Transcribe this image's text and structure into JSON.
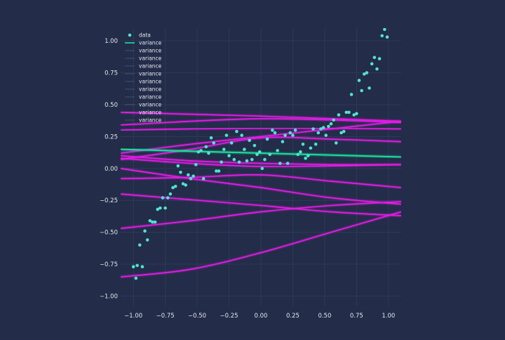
{
  "chart_data": {
    "type": "scatter",
    "title": "",
    "xlabel": "",
    "ylabel": "",
    "xlim": [
      -1.1,
      1.1
    ],
    "ylim": [
      -1.08,
      1.1
    ],
    "grid": true,
    "legend_position": "top-left",
    "x_ticks": [
      -1.0,
      -0.75,
      -0.5,
      -0.25,
      0.0,
      0.25,
      0.5,
      0.75,
      1.0
    ],
    "x_tick_labels": [
      "−1.00",
      "−0.75",
      "−0.50",
      "−0.25",
      "0.00",
      "0.25",
      "0.50",
      "0.75",
      "1.00"
    ],
    "y_ticks": [
      -1.0,
      -0.75,
      -0.5,
      -0.25,
      0.0,
      0.25,
      0.5,
      0.75,
      1.0
    ],
    "y_tick_labels": [
      "−1.00",
      "−0.75",
      "−0.50",
      "−0.25",
      "0.00",
      "0.25",
      "0.50",
      "0.75",
      "1.00"
    ],
    "colors": {
      "background": "#232c48",
      "grid": "#2e3a5a",
      "data": "#4fe3d1",
      "mean_line": "#19e59a",
      "sample_lines": "#e21ee6",
      "text": "#e6e8ef"
    },
    "legend": [
      {
        "label": "data",
        "kind": "marker"
      },
      {
        "label": "variance",
        "kind": "line"
      },
      {
        "label": "variance",
        "kind": "line"
      },
      {
        "label": "variance",
        "kind": "line"
      },
      {
        "label": "variance",
        "kind": "line"
      },
      {
        "label": "variance",
        "kind": "line"
      },
      {
        "label": "variance",
        "kind": "line"
      },
      {
        "label": "variance",
        "kind": "line"
      },
      {
        "label": "variance",
        "kind": "line"
      },
      {
        "label": "variance",
        "kind": "line"
      },
      {
        "label": "variance",
        "kind": "line"
      },
      {
        "label": "variance",
        "kind": "line"
      }
    ],
    "scatter": {
      "name": "data",
      "x": [
        -1.0,
        -0.98,
        -0.97,
        -0.95,
        -0.93,
        -0.91,
        -0.89,
        -0.87,
        -0.85,
        -0.83,
        -0.81,
        -0.79,
        -0.77,
        -0.75,
        -0.73,
        -0.71,
        -0.69,
        -0.67,
        -0.65,
        -0.63,
        -0.61,
        -0.59,
        -0.57,
        -0.55,
        -0.53,
        -0.51,
        -0.49,
        -0.47,
        -0.45,
        -0.43,
        -0.41,
        -0.39,
        -0.37,
        -0.35,
        -0.33,
        -0.31,
        -0.29,
        -0.27,
        -0.25,
        -0.23,
        -0.21,
        -0.19,
        -0.17,
        -0.15,
        -0.13,
        -0.11,
        -0.09,
        -0.07,
        -0.05,
        -0.03,
        -0.01,
        0.01,
        0.03,
        0.05,
        0.07,
        0.09,
        0.11,
        0.13,
        0.15,
        0.17,
        0.19,
        0.21,
        0.23,
        0.25,
        0.27,
        0.29,
        0.31,
        0.33,
        0.35,
        0.37,
        0.39,
        0.41,
        0.43,
        0.45,
        0.47,
        0.49,
        0.51,
        0.53,
        0.55,
        0.57,
        0.59,
        0.61,
        0.63,
        0.65,
        0.67,
        0.69,
        0.71,
        0.73,
        0.75,
        0.77,
        0.79,
        0.81,
        0.83,
        0.85,
        0.87,
        0.89,
        0.91,
        0.93,
        0.95,
        0.97,
        0.99
      ],
      "y": [
        -0.77,
        -0.86,
        -0.76,
        -0.6,
        -0.77,
        -0.49,
        -0.56,
        -0.41,
        -0.42,
        -0.42,
        -0.32,
        -0.31,
        -0.23,
        -0.31,
        -0.23,
        -0.2,
        -0.15,
        -0.14,
        0.02,
        -0.03,
        -0.12,
        -0.13,
        -0.05,
        -0.08,
        -0.06,
        0.03,
        0.13,
        0.14,
        -0.08,
        0.17,
        0.12,
        0.24,
        0.2,
        -0.02,
        -0.02,
        0.05,
        0.15,
        0.26,
        0.1,
        0.2,
        0.07,
        0.29,
        0.05,
        0.26,
        0.15,
        0.06,
        0.22,
        0.07,
        0.18,
        0.11,
        0.13,
        0.0,
        0.07,
        0.23,
        0.11,
        0.3,
        0.28,
        0.14,
        0.04,
        0.21,
        0.26,
        0.04,
        0.28,
        0.26,
        0.3,
        0.11,
        0.13,
        0.19,
        0.08,
        0.1,
        0.16,
        0.31,
        0.19,
        0.28,
        0.31,
        0.32,
        0.26,
        0.33,
        0.35,
        0.38,
        0.2,
        0.42,
        0.28,
        0.29,
        0.44,
        0.44,
        0.58,
        0.42,
        0.43,
        0.69,
        0.61,
        0.74,
        0.75,
        0.63,
        0.82,
        0.87,
        0.78,
        0.86,
        1.04,
        1.09,
        1.03
      ]
    },
    "series": [
      {
        "role": "mean",
        "x": [
          -1.1,
          1.1
        ],
        "y": [
          0.15,
          0.09
        ]
      },
      {
        "role": "sample",
        "x": [
          -1.1,
          -0.55,
          0.0,
          0.55,
          1.1
        ],
        "y": [
          0.44,
          0.425,
          0.41,
          0.39,
          0.37
        ]
      },
      {
        "role": "sample",
        "x": [
          -1.1,
          -0.55,
          0.0,
          0.55,
          1.1
        ],
        "y": [
          0.34,
          0.37,
          0.39,
          0.38,
          0.36
        ]
      },
      {
        "role": "sample",
        "x": [
          -1.1,
          -0.55,
          0.0,
          0.55,
          1.1
        ],
        "y": [
          0.3,
          0.31,
          0.315,
          0.315,
          0.31
        ]
      },
      {
        "role": "sample",
        "x": [
          -1.1,
          -0.55,
          0.0,
          0.55,
          1.1
        ],
        "y": [
          0.12,
          0.19,
          0.25,
          0.31,
          0.37
        ]
      },
      {
        "role": "sample",
        "x": [
          -1.1,
          -0.55,
          0.0,
          0.55,
          1.1
        ],
        "y": [
          0.07,
          0.15,
          0.24,
          0.23,
          0.21
        ]
      },
      {
        "role": "sample",
        "x": [
          -1.1,
          -0.55,
          0.0,
          0.55,
          1.1
        ],
        "y": [
          0.08,
          0.04,
          0.015,
          0.02,
          0.03
        ]
      },
      {
        "role": "sample",
        "x": [
          -1.1,
          -0.55,
          0.0,
          0.55,
          1.1
        ],
        "y": [
          0.1,
          0.06,
          0.04,
          0.03,
          0.03
        ]
      },
      {
        "role": "sample",
        "x": [
          -1.1,
          -0.55,
          0.0,
          0.55,
          1.1
        ],
        "y": [
          -0.08,
          -0.07,
          -0.05,
          -0.1,
          -0.15
        ]
      },
      {
        "role": "sample",
        "x": [
          -1.1,
          -0.55,
          0.0,
          0.55,
          1.1
        ],
        "y": [
          -0.2,
          -0.245,
          -0.29,
          -0.34,
          -0.37
        ]
      },
      {
        "role": "sample",
        "x": [
          -1.1,
          -0.55,
          0.0,
          0.55,
          1.1
        ],
        "y": [
          -0.47,
          -0.41,
          -0.34,
          -0.29,
          -0.26
        ]
      },
      {
        "role": "sample",
        "x": [
          -1.1,
          -0.55,
          0.0,
          0.55,
          1.1
        ],
        "y": [
          -0.85,
          -0.79,
          -0.66,
          -0.5,
          -0.34
        ]
      },
      {
        "role": "sample",
        "x": [
          -1.1,
          -0.55,
          0.0,
          0.55,
          1.1
        ],
        "y": [
          0.0,
          -0.08,
          -0.15,
          -0.23,
          -0.28
        ]
      }
    ]
  }
}
